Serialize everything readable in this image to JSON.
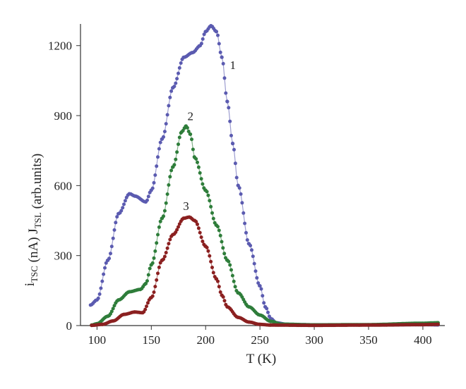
{
  "chart_data": {
    "type": "scatter",
    "xlabel": "T (K)",
    "ylabel_parts": [
      {
        "t": "i",
        "sub": false
      },
      {
        "t": "TSC",
        "sub": true
      },
      {
        "t": " (nA)    J",
        "sub": false
      },
      {
        "t": "TSL",
        "sub": true
      },
      {
        "t": " (arb.units)",
        "sub": false
      }
    ],
    "xlim": [
      90,
      415
    ],
    "ylim": [
      0,
      1320
    ],
    "xticks": [
      100,
      150,
      200,
      250,
      300,
      350,
      400
    ],
    "yticks": [
      0,
      300,
      600,
      900,
      1200
    ],
    "grid": false,
    "series": [
      {
        "name": "1",
        "color": "#5b5bb0",
        "points": [
          [
            94,
            88
          ],
          [
            100,
            110
          ],
          [
            110,
            280
          ],
          [
            120,
            480
          ],
          [
            130,
            565
          ],
          [
            135,
            555
          ],
          [
            145,
            530
          ],
          [
            150,
            580
          ],
          [
            160,
            800
          ],
          [
            170,
            1020
          ],
          [
            180,
            1150
          ],
          [
            188,
            1170
          ],
          [
            195,
            1200
          ],
          [
            200,
            1260
          ],
          [
            205,
            1285
          ],
          [
            210,
            1260
          ],
          [
            215,
            1150
          ],
          [
            220,
            960
          ],
          [
            225,
            780
          ],
          [
            230,
            600
          ],
          [
            240,
            350
          ],
          [
            250,
            170
          ],
          [
            255,
            80
          ],
          [
            260,
            30
          ],
          [
            265,
            12
          ],
          [
            275,
            5
          ],
          [
            300,
            3
          ],
          [
            350,
            3
          ],
          [
            400,
            4
          ],
          [
            414,
            3
          ]
        ]
      },
      {
        "name": "2",
        "color": "#2e7d3a",
        "points": [
          [
            95,
            2
          ],
          [
            100,
            8
          ],
          [
            110,
            40
          ],
          [
            120,
            110
          ],
          [
            130,
            145
          ],
          [
            140,
            155
          ],
          [
            145,
            180
          ],
          [
            150,
            260
          ],
          [
            160,
            460
          ],
          [
            170,
            680
          ],
          [
            178,
            830
          ],
          [
            182,
            855
          ],
          [
            186,
            820
          ],
          [
            190,
            720
          ],
          [
            200,
            580
          ],
          [
            210,
            430
          ],
          [
            220,
            280
          ],
          [
            230,
            140
          ],
          [
            240,
            80
          ],
          [
            250,
            45
          ],
          [
            260,
            18
          ],
          [
            270,
            6
          ],
          [
            300,
            3
          ],
          [
            350,
            4
          ],
          [
            400,
            10
          ],
          [
            414,
            12
          ]
        ]
      },
      {
        "name": "3",
        "color": "#8b2020",
        "points": [
          [
            95,
            1
          ],
          [
            105,
            5
          ],
          [
            115,
            20
          ],
          [
            125,
            48
          ],
          [
            135,
            58
          ],
          [
            142,
            55
          ],
          [
            150,
            120
          ],
          [
            160,
            280
          ],
          [
            170,
            390
          ],
          [
            180,
            460
          ],
          [
            185,
            465
          ],
          [
            190,
            450
          ],
          [
            200,
            340
          ],
          [
            210,
            200
          ],
          [
            215,
            130
          ],
          [
            220,
            80
          ],
          [
            230,
            35
          ],
          [
            240,
            15
          ],
          [
            250,
            5
          ],
          [
            260,
            2
          ],
          [
            300,
            1
          ],
          [
            350,
            2
          ],
          [
            400,
            4
          ],
          [
            414,
            5
          ]
        ]
      }
    ]
  }
}
